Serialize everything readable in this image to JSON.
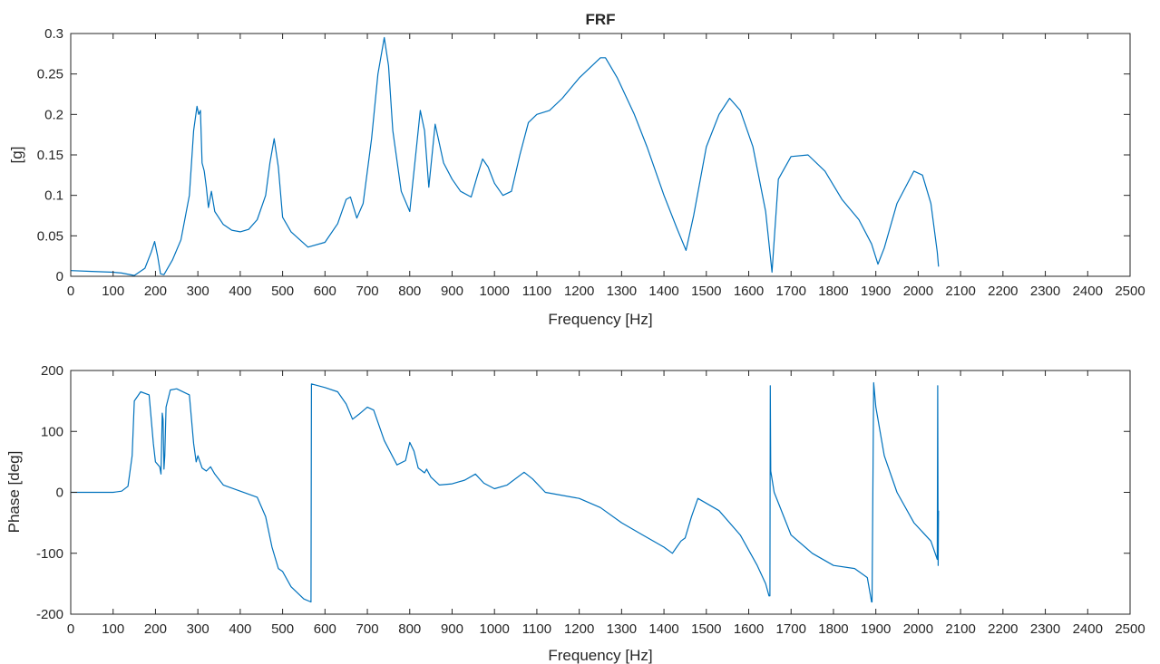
{
  "chart_data": [
    {
      "type": "line",
      "title": "FRF",
      "xlabel": "Frequency [Hz]",
      "ylabel": "[g]",
      "xlim": [
        0,
        2500
      ],
      "ylim": [
        0,
        0.3
      ],
      "xticks": [
        "0",
        "100",
        "200",
        "300",
        "400",
        "500",
        "600",
        "700",
        "800",
        "900",
        "1000",
        "1100",
        "1200",
        "1300",
        "1400",
        "1500",
        "1600",
        "1700",
        "1800",
        "1900",
        "2000",
        "2100",
        "2200",
        "2300",
        "2400",
        "2500"
      ],
      "yticks": [
        "0",
        "0.05",
        "0.1",
        "0.15",
        "0.2",
        "0.25",
        "0.3"
      ],
      "color": "#0072bd",
      "series": [
        {
          "x": [
            0,
            50,
            100,
            120,
            150,
            175,
            190,
            198,
            205,
            212,
            220,
            240,
            260,
            280,
            290,
            298,
            302,
            306,
            310,
            315,
            320,
            325,
            332,
            340,
            360,
            380,
            400,
            420,
            440,
            460,
            470,
            480,
            490,
            500,
            520,
            560,
            600,
            630,
            650,
            660,
            675,
            690,
            710,
            725,
            740,
            750,
            760,
            780,
            800,
            812,
            825,
            835,
            845,
            860,
            880,
            900,
            920,
            945,
            960,
            972,
            985,
            1000,
            1020,
            1040,
            1060,
            1080,
            1100,
            1130,
            1160,
            1200,
            1250,
            1262,
            1290,
            1330,
            1360,
            1400,
            1430,
            1452,
            1470,
            1500,
            1530,
            1555,
            1580,
            1610,
            1640,
            1655,
            1670,
            1700,
            1740,
            1780,
            1820,
            1860,
            1890,
            1905,
            1920,
            1950,
            1990,
            2010,
            2030,
            2045,
            2048
          ],
          "y": [
            0.007,
            0.006,
            0.005,
            0.004,
            0.001,
            0.01,
            0.03,
            0.043,
            0.025,
            0.003,
            0.002,
            0.02,
            0.045,
            0.1,
            0.18,
            0.21,
            0.2,
            0.205,
            0.14,
            0.13,
            0.11,
            0.085,
            0.105,
            0.08,
            0.064,
            0.057,
            0.055,
            0.058,
            0.07,
            0.1,
            0.14,
            0.17,
            0.135,
            0.073,
            0.055,
            0.036,
            0.042,
            0.065,
            0.095,
            0.098,
            0.072,
            0.09,
            0.17,
            0.25,
            0.295,
            0.26,
            0.18,
            0.105,
            0.08,
            0.14,
            0.205,
            0.18,
            0.11,
            0.188,
            0.14,
            0.12,
            0.105,
            0.098,
            0.125,
            0.145,
            0.135,
            0.115,
            0.1,
            0.105,
            0.15,
            0.19,
            0.2,
            0.205,
            0.22,
            0.245,
            0.27,
            0.27,
            0.245,
            0.2,
            0.16,
            0.1,
            0.06,
            0.032,
            0.075,
            0.16,
            0.2,
            0.22,
            0.205,
            0.16,
            0.08,
            0.005,
            0.12,
            0.148,
            0.15,
            0.13,
            0.095,
            0.07,
            0.04,
            0.015,
            0.035,
            0.09,
            0.13,
            0.125,
            0.09,
            0.03,
            0.012
          ]
        }
      ]
    },
    {
      "type": "line",
      "title": "",
      "xlabel": "Frequency [Hz]",
      "ylabel": "Phase [deg]",
      "xlim": [
        0,
        2500
      ],
      "ylim": [
        -200,
        200
      ],
      "xticks": [
        "0",
        "100",
        "200",
        "300",
        "400",
        "500",
        "600",
        "700",
        "800",
        "900",
        "1000",
        "1100",
        "1200",
        "1300",
        "1400",
        "1500",
        "1600",
        "1700",
        "1800",
        "1900",
        "2000",
        "2100",
        "2200",
        "2300",
        "2400",
        "2500"
      ],
      "yticks": [
        "-200",
        "-100",
        "0",
        "100",
        "200"
      ],
      "color": "#0072bd",
      "series": [
        {
          "x": [
            0,
            50,
            100,
            120,
            135,
            145,
            150,
            165,
            185,
            195,
            200,
            210,
            213,
            216,
            218,
            220,
            222,
            225,
            235,
            250,
            280,
            290,
            296,
            300,
            310,
            320,
            330,
            340,
            360,
            400,
            440,
            460,
            475,
            490,
            500,
            520,
            550,
            567,
            568,
            600,
            630,
            650,
            665,
            680,
            700,
            715,
            740,
            770,
            790,
            800,
            810,
            820,
            835,
            840,
            850,
            870,
            900,
            930,
            955,
            975,
            1000,
            1030,
            1070,
            1090,
            1120,
            1200,
            1250,
            1300,
            1350,
            1400,
            1420,
            1430,
            1440,
            1450,
            1465,
            1480,
            1530,
            1580,
            1620,
            1640,
            1648,
            1650,
            1651,
            1652,
            1660,
            1700,
            1750,
            1800,
            1850,
            1880,
            1890,
            1891,
            1895,
            1900,
            1920,
            1950,
            1990,
            2030,
            2040,
            2045,
            2046,
            2047,
            2048
          ],
          "y": [
            0,
            0,
            0,
            2,
            10,
            60,
            150,
            165,
            160,
            80,
            50,
            42,
            30,
            130,
            120,
            38,
            60,
            140,
            168,
            170,
            160,
            80,
            50,
            60,
            40,
            35,
            42,
            30,
            12,
            2,
            -8,
            -40,
            -90,
            -125,
            -130,
            -155,
            -175,
            -180,
            178,
            172,
            165,
            145,
            120,
            128,
            140,
            135,
            85,
            45,
            52,
            82,
            68,
            40,
            32,
            38,
            25,
            12,
            14,
            20,
            30,
            15,
            6,
            12,
            33,
            22,
            0,
            -10,
            -25,
            -50,
            -70,
            -90,
            -100,
            -90,
            -80,
            -75,
            -40,
            -10,
            -30,
            -70,
            -120,
            -150,
            -170,
            -170,
            175,
            35,
            0,
            -70,
            -100,
            -120,
            -125,
            -140,
            -180,
            -180,
            180,
            140,
            60,
            0,
            -50,
            -80,
            -100,
            -110,
            175,
            -120,
            -30
          ]
        }
      ]
    }
  ]
}
